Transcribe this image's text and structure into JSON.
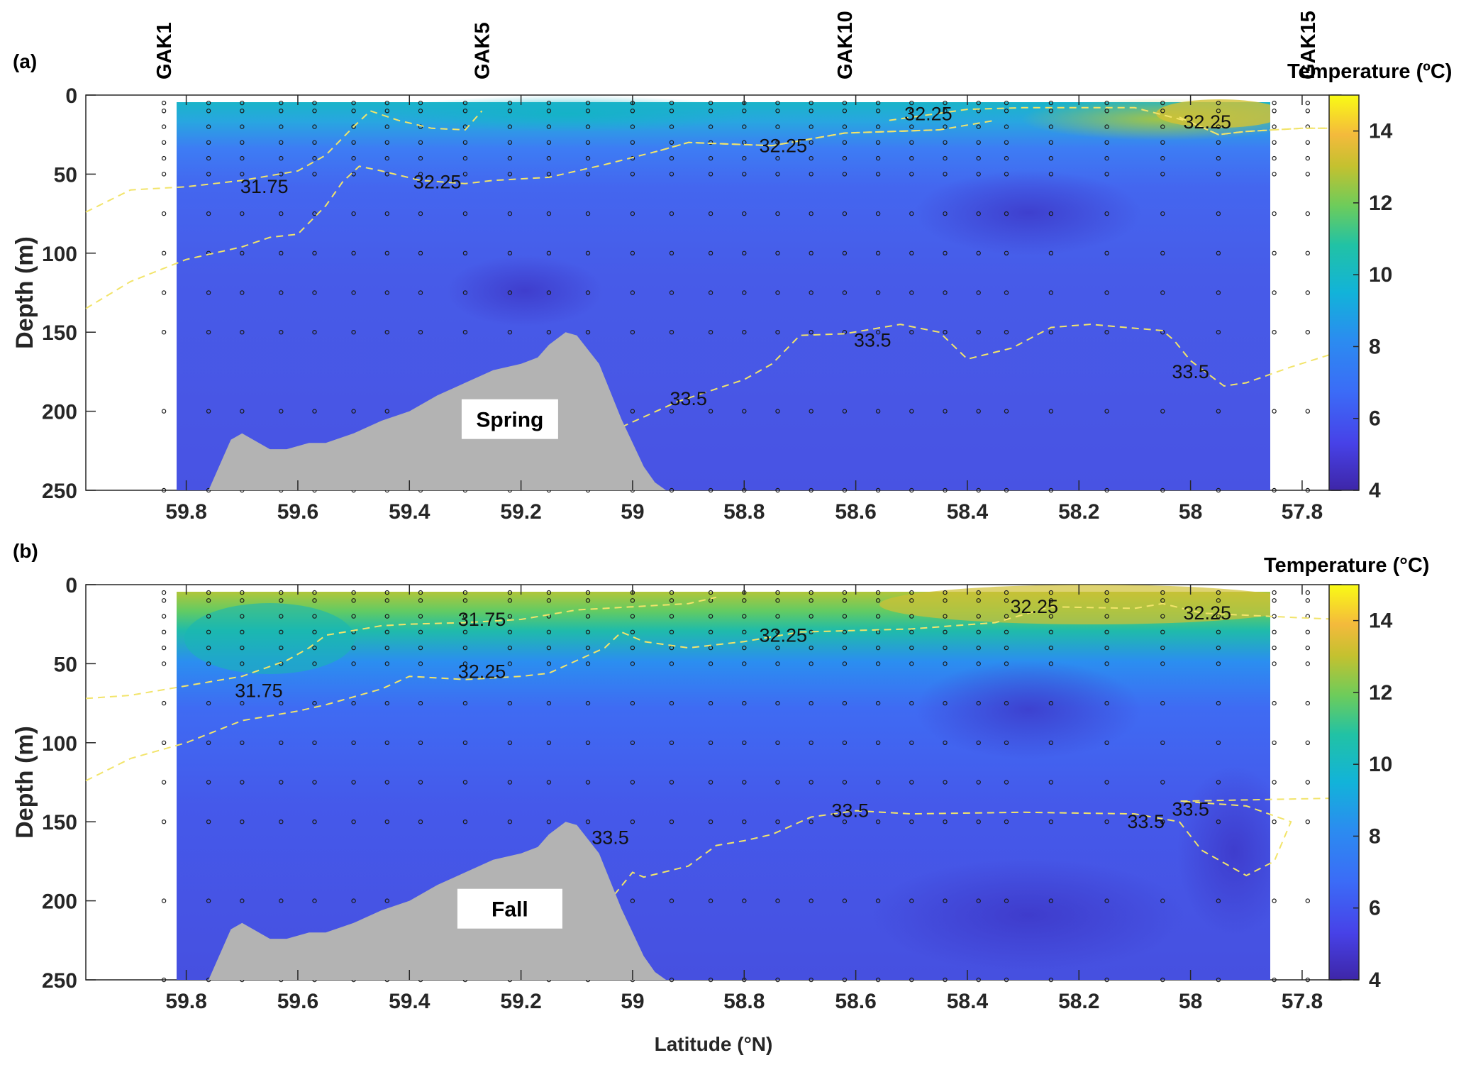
{
  "chart_data": [
    {
      "type": "heatmap",
      "panel_label": "(a)",
      "season": "Spring",
      "xlabel": "",
      "ylabel": "Depth (m)",
      "xlim": [
        59.98,
        57.73
      ],
      "ylim": [
        250,
        0
      ],
      "x_ticks": [
        59.8,
        59.6,
        59.4,
        59.2,
        59,
        58.8,
        58.6,
        58.4,
        58.2,
        58,
        57.8
      ],
      "x_tick_labels": [
        "59.8",
        "59.6",
        "59.4",
        "59.2",
        "59",
        "58.8",
        "58.6",
        "58.4",
        "58.2",
        "58",
        "57.8"
      ],
      "y_ticks": [
        0,
        50,
        100,
        150,
        200,
        250
      ],
      "y_tick_labels": [
        "0",
        "50",
        "100",
        "150",
        "200",
        "250"
      ],
      "stations": [
        {
          "name": "GAK1",
          "lat": 59.84
        },
        {
          "name": "GAK5",
          "lat": 59.27
        },
        {
          "name": "GAK10",
          "lat": 58.62
        },
        {
          "name": "GAK15",
          "lat": 57.79
        }
      ],
      "colorbar": {
        "title": "Temperature (ºC)",
        "min": 4,
        "max": 15,
        "ticks": [
          4,
          6,
          8,
          10,
          12,
          14
        ],
        "tick_labels": [
          "4",
          "6",
          "8",
          "10",
          "12",
          "14"
        ]
      },
      "contours": [
        {
          "level": 31.75,
          "label": "31.75",
          "label_pos": [
            59.66,
            58
          ],
          "points": [
            [
              59.98,
              74
            ],
            [
              59.9,
              60
            ],
            [
              59.8,
              58
            ],
            [
              59.7,
              54
            ],
            [
              59.6,
              48
            ],
            [
              59.55,
              38
            ],
            [
              59.5,
              20
            ],
            [
              59.47,
              10
            ],
            [
              59.42,
              16
            ],
            [
              59.36,
              21
            ],
            [
              59.3,
              22
            ],
            [
              59.27,
              10
            ]
          ]
        },
        {
          "level": 32.25,
          "label": "32.25",
          "label_pos": [
            59.35,
            55
          ],
          "points": [
            [
              59.98,
              135
            ],
            [
              59.9,
              118
            ],
            [
              59.8,
              104
            ],
            [
              59.7,
              96
            ],
            [
              59.65,
              90
            ],
            [
              59.6,
              88
            ],
            [
              59.55,
              70
            ],
            [
              59.52,
              55
            ],
            [
              59.49,
              45
            ],
            [
              59.45,
              48
            ],
            [
              59.38,
              54
            ],
            [
              59.3,
              56
            ],
            [
              59.25,
              54
            ],
            [
              59.15,
              52
            ],
            [
              59.05,
              44
            ],
            [
              58.95,
              35
            ],
            [
              58.9,
              30
            ],
            [
              58.75,
              32
            ],
            [
              58.62,
              24
            ],
            [
              58.45,
              22
            ],
            [
              58.35,
              16
            ]
          ]
        },
        {
          "level": 32.25,
          "label": "32.25",
          "label_pos": [
            58.73,
            32
          ],
          "points": [
            [
              58.95,
              35
            ],
            [
              58.9,
              30
            ],
            [
              58.75,
              32
            ],
            [
              58.62,
              24
            ],
            [
              58.45,
              22
            ]
          ]
        },
        {
          "level": 32.25,
          "label": "32.25",
          "label_pos": [
            58.47,
            12
          ],
          "points": [
            [
              58.54,
              16
            ],
            [
              58.4,
              9
            ],
            [
              58.3,
              8
            ],
            [
              58.2,
              8
            ],
            [
              58.1,
              8
            ],
            [
              58.0,
              17
            ],
            [
              57.95,
              25
            ],
            [
              57.9,
              23
            ],
            [
              57.8,
              21
            ],
            [
              57.73,
              21
            ]
          ]
        },
        {
          "level": 32.25,
          "label": "32.25",
          "label_pos": [
            57.97,
            17
          ],
          "points": [
            [
              58.02,
              14
            ],
            [
              57.95,
              25
            ],
            [
              57.9,
              23
            ],
            [
              57.8,
              21
            ],
            [
              57.73,
              21
            ]
          ]
        },
        {
          "level": 33.5,
          "label": "33.5",
          "label_pos": [
            58.57,
            155
          ],
          "points": [
            [
              59.02,
              210
            ],
            [
              58.92,
              194
            ],
            [
              58.8,
              180
            ],
            [
              58.75,
              170
            ],
            [
              58.7,
              152
            ],
            [
              58.62,
              151
            ],
            [
              58.52,
              145
            ],
            [
              58.45,
              150
            ],
            [
              58.4,
              167
            ],
            [
              58.32,
              160
            ],
            [
              58.25,
              147
            ],
            [
              58.18,
              145
            ],
            [
              58.05,
              149
            ],
            [
              58.03,
              155
            ],
            [
              58.0,
              168
            ],
            [
              57.94,
              184
            ],
            [
              57.9,
              182
            ],
            [
              57.82,
              172
            ],
            [
              57.73,
              162
            ]
          ]
        },
        {
          "level": 33.5,
          "label": "33.5",
          "label_pos": [
            58.9,
            192
          ],
          "points": []
        },
        {
          "level": 33.5,
          "label": "33.5",
          "label_pos": [
            58.0,
            175
          ],
          "points": []
        }
      ],
      "bathymetry": [
        [
          59.76,
          250
        ],
        [
          59.72,
          218
        ],
        [
          59.7,
          214
        ],
        [
          59.65,
          224
        ],
        [
          59.62,
          224
        ],
        [
          59.58,
          220
        ],
        [
          59.55,
          220
        ],
        [
          59.5,
          214
        ],
        [
          59.45,
          206
        ],
        [
          59.4,
          200
        ],
        [
          59.35,
          190
        ],
        [
          59.3,
          182
        ],
        [
          59.25,
          174
        ],
        [
          59.2,
          170
        ],
        [
          59.17,
          166
        ],
        [
          59.15,
          158
        ],
        [
          59.12,
          150
        ],
        [
          59.1,
          152
        ],
        [
          59.06,
          170
        ],
        [
          59.02,
          205
        ],
        [
          58.98,
          235
        ],
        [
          58.96,
          245
        ],
        [
          58.94,
          250
        ]
      ]
    },
    {
      "type": "heatmap",
      "panel_label": "(b)",
      "season": "Fall",
      "xlabel": "Latitude (°N)",
      "ylabel": "Depth (m)",
      "xlim": [
        59.98,
        57.73
      ],
      "ylim": [
        250,
        0
      ],
      "x_ticks": [
        59.8,
        59.6,
        59.4,
        59.2,
        59,
        58.8,
        58.6,
        58.4,
        58.2,
        58,
        57.8
      ],
      "x_tick_labels": [
        "59.8",
        "59.6",
        "59.4",
        "59.2",
        "59",
        "58.8",
        "58.6",
        "58.4",
        "58.2",
        "58",
        "57.8"
      ],
      "y_ticks": [
        0,
        50,
        100,
        150,
        200,
        250
      ],
      "y_tick_labels": [
        "0",
        "50",
        "100",
        "150",
        "200",
        "250"
      ],
      "colorbar": {
        "title": "Temperature (°C)",
        "min": 4,
        "max": 15,
        "ticks": [
          4,
          6,
          8,
          10,
          12,
          14
        ],
        "tick_labels": [
          "4",
          "6",
          "8",
          "10",
          "12",
          "14"
        ]
      },
      "contours": [
        {
          "level": 31.75,
          "label": "31.75",
          "label_pos": [
            59.27,
            22
          ],
          "points": [
            [
              59.98,
              72
            ],
            [
              59.9,
              70
            ],
            [
              59.8,
              64
            ],
            [
              59.7,
              58
            ],
            [
              59.62,
              48
            ],
            [
              59.58,
              40
            ],
            [
              59.55,
              32
            ],
            [
              59.45,
              26
            ],
            [
              59.4,
              25
            ],
            [
              59.3,
              24
            ],
            [
              59.2,
              22
            ],
            [
              59.1,
              16
            ],
            [
              59.0,
              14
            ],
            [
              58.9,
              12
            ],
            [
              58.85,
              8
            ]
          ]
        },
        {
          "level": 31.75,
          "label": "31.75",
          "label_pos": [
            59.67,
            67
          ],
          "points": []
        },
        {
          "level": 32.25,
          "label": "32.25",
          "label_pos": [
            59.27,
            55
          ],
          "points": [
            [
              59.98,
              124
            ],
            [
              59.9,
              110
            ],
            [
              59.8,
              100
            ],
            [
              59.7,
              86
            ],
            [
              59.6,
              80
            ],
            [
              59.55,
              76
            ],
            [
              59.45,
              66
            ],
            [
              59.4,
              58
            ],
            [
              59.3,
              60
            ],
            [
              59.2,
              58
            ],
            [
              59.15,
              56
            ],
            [
              59.1,
              48
            ],
            [
              59.05,
              40
            ],
            [
              59.02,
              30
            ],
            [
              58.98,
              36
            ],
            [
              58.9,
              40
            ],
            [
              58.8,
              36
            ],
            [
              58.7,
              30
            ],
            [
              58.5,
              28
            ],
            [
              58.35,
              24
            ],
            [
              58.25,
              14
            ],
            [
              58.1,
              15
            ],
            [
              58.05,
              12
            ],
            [
              57.98,
              18
            ],
            [
              57.8,
              21
            ],
            [
              57.73,
              22
            ]
          ]
        },
        {
          "level": 32.25,
          "label": "32.25",
          "label_pos": [
            58.73,
            32
          ],
          "points": []
        },
        {
          "level": 32.25,
          "label": "32.25",
          "label_pos": [
            58.28,
            14
          ],
          "points": []
        },
        {
          "level": 32.25,
          "label": "32.25",
          "label_pos": [
            57.97,
            18
          ],
          "points": []
        },
        {
          "level": 33.5,
          "label": "33.5",
          "label_pos": [
            59.04,
            160
          ],
          "points": [
            [
              59.06,
              208
            ],
            [
              59.0,
              182
            ],
            [
              58.98,
              185
            ],
            [
              58.9,
              178
            ],
            [
              58.85,
              165
            ],
            [
              58.8,
              162
            ],
            [
              58.75,
              158
            ],
            [
              58.68,
              147
            ],
            [
              58.6,
              143
            ],
            [
              58.5,
              145
            ],
            [
              58.3,
              144
            ],
            [
              58.1,
              145
            ],
            [
              58.02,
              150
            ],
            [
              57.98,
              168
            ],
            [
              57.9,
              184
            ],
            [
              57.85,
              175
            ],
            [
              57.82,
              150
            ],
            [
              57.9,
              140
            ],
            [
              58.02,
              137
            ],
            [
              57.73,
              135
            ]
          ]
        },
        {
          "level": 33.5,
          "label": "33.5",
          "label_pos": [
            58.61,
            143
          ],
          "points": []
        },
        {
          "level": 33.5,
          "label": "33.5",
          "label_pos": [
            58.08,
            150
          ],
          "points": []
        },
        {
          "level": 33.5,
          "label": "33.5",
          "label_pos": [
            58.0,
            142
          ],
          "points": []
        }
      ],
      "bathymetry": [
        [
          59.76,
          250
        ],
        [
          59.72,
          218
        ],
        [
          59.7,
          214
        ],
        [
          59.65,
          224
        ],
        [
          59.62,
          224
        ],
        [
          59.58,
          220
        ],
        [
          59.55,
          220
        ],
        [
          59.5,
          214
        ],
        [
          59.45,
          206
        ],
        [
          59.4,
          200
        ],
        [
          59.35,
          190
        ],
        [
          59.3,
          182
        ],
        [
          59.25,
          174
        ],
        [
          59.2,
          170
        ],
        [
          59.17,
          166
        ],
        [
          59.15,
          158
        ],
        [
          59.12,
          150
        ],
        [
          59.1,
          152
        ],
        [
          59.06,
          170
        ],
        [
          59.02,
          205
        ],
        [
          58.98,
          235
        ],
        [
          58.96,
          245
        ],
        [
          58.94,
          250
        ]
      ]
    }
  ],
  "colors": {
    "axis": "#262626",
    "bathymetry": "#b3b3b3",
    "contour_line": "#f2e46a",
    "sample_point": "#1a1a1a"
  }
}
